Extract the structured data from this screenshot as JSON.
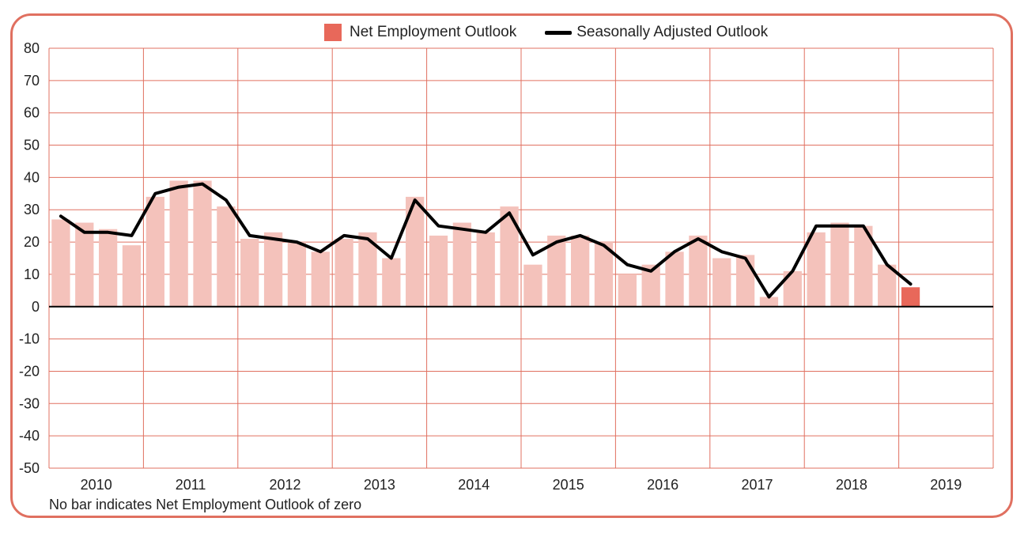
{
  "legend": {
    "bar_label": "Net Employment Outlook",
    "line_label": "Seasonally Adjusted Outlook"
  },
  "footnote": "No bar indicates Net Employment Outlook of zero",
  "colors": {
    "frame": "#e07060",
    "grid": "#e07060",
    "bar": "#f4c2bb",
    "bar_latest": "#e8685a",
    "line": "#000000"
  },
  "chart_data": {
    "type": "bar",
    "ylim": [
      -50,
      80
    ],
    "yticks": [
      80,
      70,
      60,
      50,
      40,
      30,
      20,
      10,
      0,
      -10,
      -20,
      -30,
      -40,
      -50
    ],
    "years": [
      "2010",
      "2011",
      "2012",
      "2013",
      "2014",
      "2015",
      "2016",
      "2017",
      "2018",
      "2019"
    ],
    "grid": true,
    "legend_position": "top",
    "series": [
      {
        "name": "Net Employment Outlook",
        "type": "bar",
        "values": [
          27,
          26,
          24,
          19,
          34,
          39,
          39,
          31,
          21,
          23,
          20,
          17,
          21,
          23,
          15,
          34,
          22,
          26,
          23,
          31,
          13,
          22,
          22,
          20,
          10,
          13,
          17,
          22,
          15,
          16,
          3,
          11,
          23,
          26,
          25,
          13,
          6
        ]
      },
      {
        "name": "Seasonally Adjusted Outlook",
        "type": "line",
        "values": [
          28,
          23,
          23,
          22,
          35,
          37,
          38,
          33,
          22,
          21,
          20,
          17,
          22,
          21,
          15,
          33,
          25,
          24,
          23,
          29,
          16,
          20,
          22,
          19,
          13,
          11,
          17,
          21,
          17,
          15,
          3,
          11,
          25,
          25,
          25,
          13,
          7
        ]
      }
    ]
  }
}
